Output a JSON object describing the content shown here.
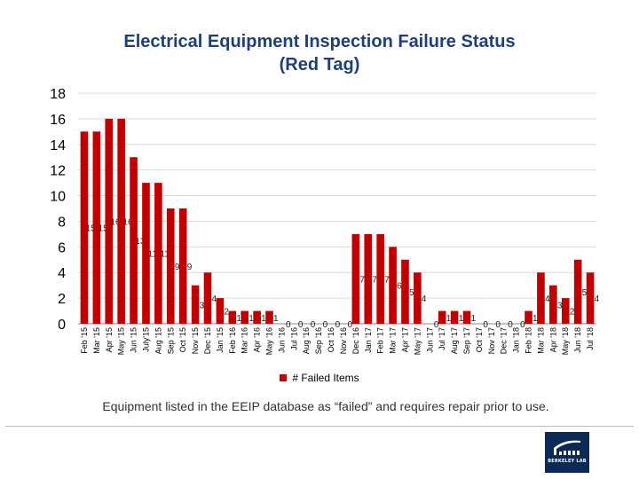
{
  "chart_data": {
    "type": "bar",
    "title_lines": [
      "Electrical Equipment Inspection Failure Status",
      "(Red Tag)"
    ],
    "categories": [
      "Feb '15",
      "Mar '15",
      "Apr '15",
      "May '15",
      "Jun '15",
      "July'15",
      "Aug '15",
      "Sep '15",
      "Oct '15",
      "Nov '15",
      "Dec '15",
      "Jan '15",
      "Feb '16",
      "Mar '16",
      "Apr '16",
      "May '16",
      "Jun '16",
      "Jul '16",
      "Aug '16",
      "Sep '16",
      "Oct '16",
      "Nov '16",
      "Dec '16",
      "Jan '17",
      "Feb '17",
      "Mar '17",
      "Apr '17",
      "May '17",
      "Jun '17",
      "Jul '17",
      "Aug '17",
      "Sep '17",
      "Oct '17",
      "Nov '17",
      "Dec '17",
      "Jan '18",
      "Feb '18",
      "Mar '18",
      "Apr '18",
      "May '18",
      "Jun '18",
      "Jul '18"
    ],
    "series": [
      {
        "name": "# Failed Items",
        "color": "#c00000",
        "values": [
          15,
          15,
          16,
          16,
          13,
          11,
          11,
          9,
          9,
          3,
          4,
          2,
          1,
          1,
          1,
          1,
          0,
          0,
          0,
          0,
          0,
          0,
          7,
          7,
          7,
          6,
          5,
          4,
          0,
          1,
          1,
          1,
          0,
          0,
          0,
          0,
          1,
          4,
          3,
          2,
          5,
          4
        ]
      }
    ],
    "ylim": [
      0,
      18
    ],
    "yticks": [
      0,
      2,
      4,
      6,
      8,
      10,
      12,
      14,
      16,
      18
    ],
    "grid": true,
    "legend_position": "bottom"
  },
  "legend_label": "# Failed Items",
  "caption": "Equipment listed in the EEIP database as “failed” and requires repair prior to use.",
  "logo": {
    "text": "BERKELEY LAB"
  }
}
